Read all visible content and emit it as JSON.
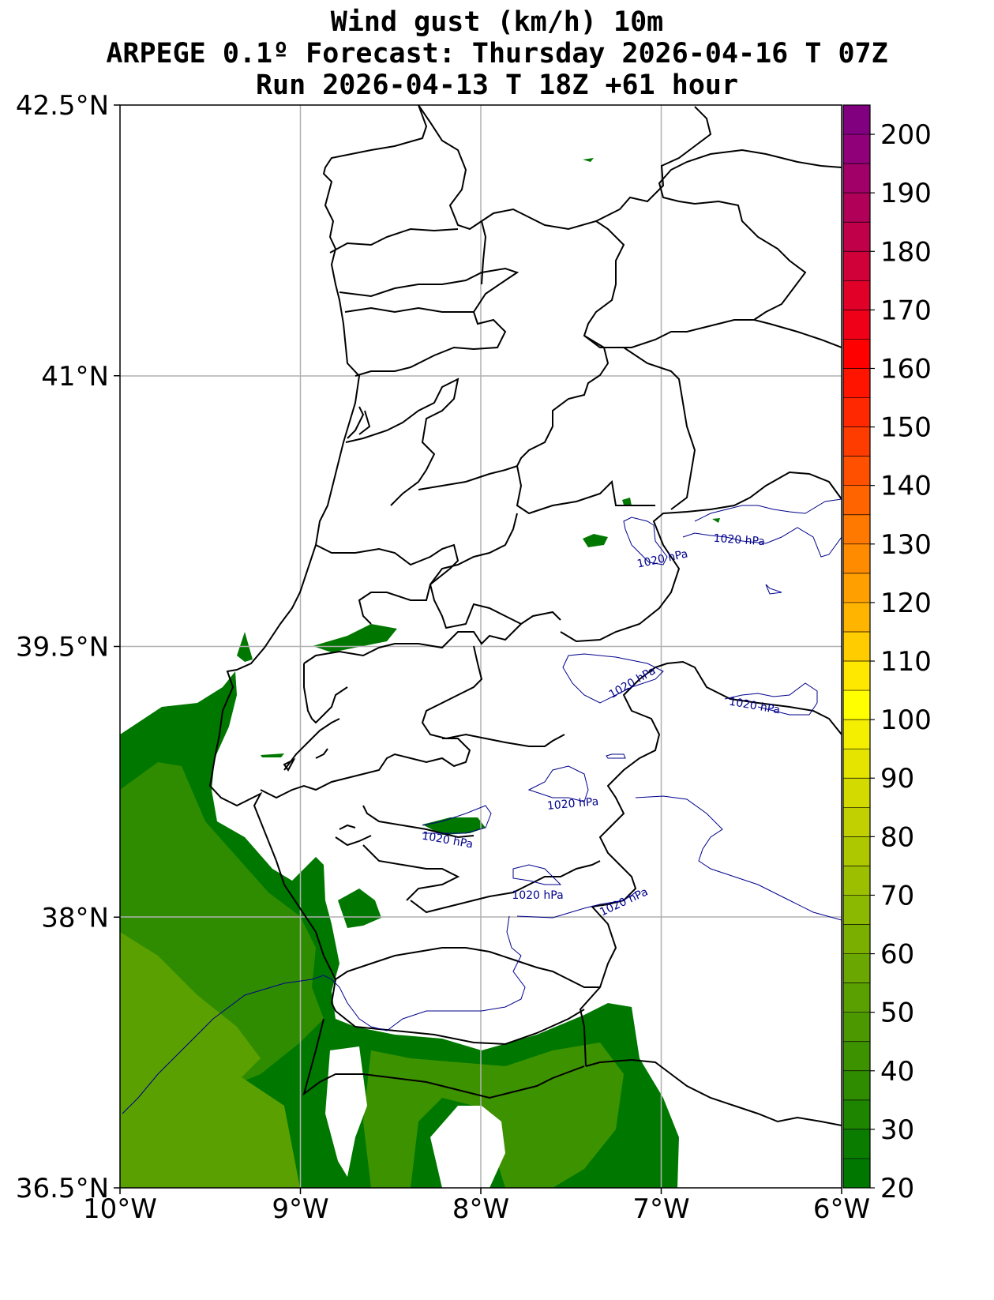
{
  "title": {
    "line1": "Wind gust (km/h) 10m",
    "line2": "ARPEGE 0.1º Forecast: Thursday 2026-04-16 T 07Z",
    "line3": "Run 2026-04-13 T 18Z +61 hour"
  },
  "map": {
    "lon_range": [
      -10,
      -6
    ],
    "lat_range": [
      36.5,
      42.5
    ],
    "lon_ticks": [
      {
        "value": -10,
        "label": "10°W"
      },
      {
        "value": -9,
        "label": "9°W"
      },
      {
        "value": -8,
        "label": "8°W"
      },
      {
        "value": -7,
        "label": "7°W"
      },
      {
        "value": -6,
        "label": "6°W"
      }
    ],
    "lat_ticks": [
      {
        "value": 42.5,
        "label": "42.5°N"
      },
      {
        "value": 41,
        "label": "41°N"
      },
      {
        "value": 39.5,
        "label": "39.5°N"
      },
      {
        "value": 38,
        "label": "38°N"
      },
      {
        "value": 36.5,
        "label": "36.5°N"
      }
    ],
    "grid": true,
    "isobar_labels": [
      "1020 hPa",
      "1020 hPa",
      "1020 hPa",
      "1020 hPa",
      "1020 hPa",
      "1020 hPa",
      "1020 hPa",
      "1020 hPa"
    ]
  },
  "colorbar": {
    "min": 20,
    "max": 205,
    "step": 5,
    "tick_labels": [
      "20",
      "30",
      "40",
      "50",
      "60",
      "70",
      "80",
      "90",
      "100",
      "110",
      "120",
      "130",
      "140",
      "150",
      "160",
      "170",
      "180",
      "190",
      "200"
    ],
    "colors": [
      "#007800",
      "#0a7d00",
      "#1e8500",
      "#2f8c00",
      "#3d9200",
      "#4b9800",
      "#5aa000",
      "#6aa700",
      "#7aaf00",
      "#8bb800",
      "#9cc000",
      "#aec800",
      "#c0d000",
      "#d2da00",
      "#e4e400",
      "#f4ee00",
      "#ffff00",
      "#ffe800",
      "#ffcc00",
      "#ffb400",
      "#ffa000",
      "#ff8c00",
      "#ff7800",
      "#ff6400",
      "#ff5000",
      "#ff3c00",
      "#ff2800",
      "#ff1400",
      "#ff0000",
      "#f00018",
      "#e00028",
      "#d00038",
      "#c00048",
      "#b00058",
      "#a00068",
      "#900078",
      "#800080"
    ]
  }
}
